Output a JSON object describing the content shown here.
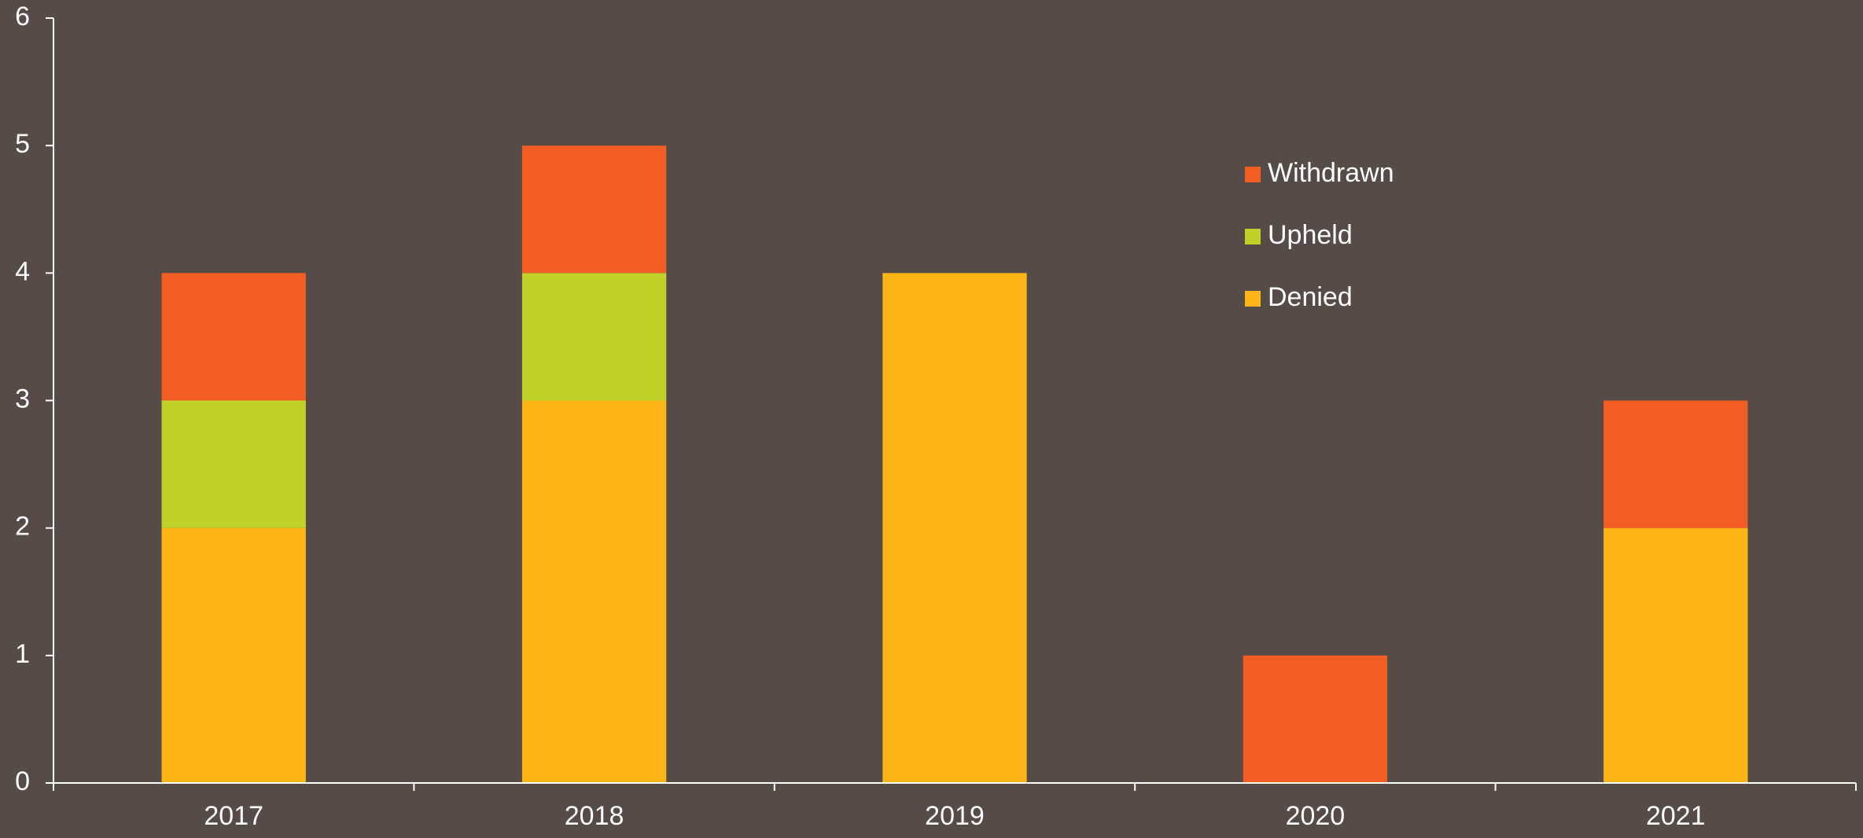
{
  "chart_data": {
    "type": "stacked_bar",
    "categories": [
      "2017",
      "2018",
      "2019",
      "2020",
      "2021"
    ],
    "series": [
      {
        "name": "Denied",
        "color": "#fdb515",
        "values": [
          2,
          3,
          4,
          0,
          2
        ]
      },
      {
        "name": "Upheld",
        "color": "#c0d22a",
        "values": [
          1,
          1,
          0,
          0,
          0
        ]
      },
      {
        "name": "Withdrawn",
        "color": "#f15d22",
        "values": [
          1,
          1,
          0,
          1,
          1
        ]
      }
    ],
    "ylim": [
      0,
      6
    ],
    "yticks": [
      0,
      1,
      2,
      3,
      4,
      5,
      6
    ],
    "grid": false,
    "legend": "upper right"
  }
}
